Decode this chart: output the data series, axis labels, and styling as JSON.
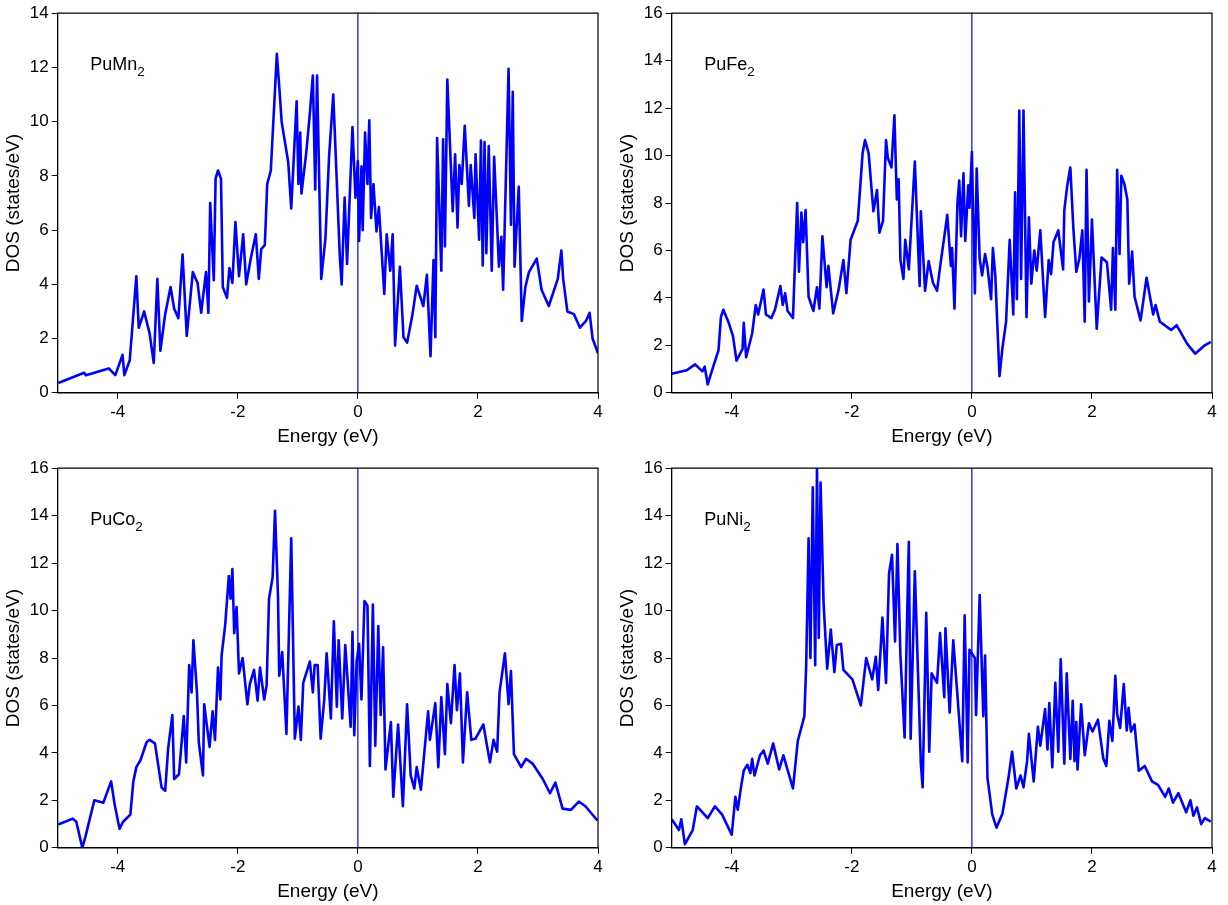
{
  "chart_data": [
    {
      "type": "line",
      "xlabel": "Energy (eV)",
      "ylabel": "DOS (states/eV)",
      "annotations": [
        "PuMn$_{2}$"
      ],
      "xlim": [
        -5,
        4
      ],
      "xticks": [
        -4,
        -2,
        0,
        2,
        4
      ],
      "ylim": [
        0,
        14
      ],
      "yticks": [
        0,
        2,
        4,
        6,
        8,
        10,
        12,
        14
      ],
      "ref_lines": [
        {
          "axis": "x",
          "value": 0,
          "color": "#0000ff"
        }
      ],
      "x": [
        -4.99,
        -4.56,
        -4.53,
        -4.15,
        -4.04,
        -3.92,
        -3.89,
        -3.8,
        -3.69,
        -3.65,
        -3.56,
        -3.47,
        -3.4,
        -3.34,
        -3.29,
        -3.21,
        -3.12,
        -3.06,
        -2.99,
        -2.92,
        -2.85,
        -2.75,
        -2.67,
        -2.61,
        -2.53,
        -2.49,
        -2.46,
        -2.4,
        -2.37,
        -2.33,
        -2.28,
        -2.25,
        -2.18,
        -2.14,
        -2.09,
        -2.04,
        -1.98,
        -1.91,
        -1.86,
        -1.78,
        -1.7,
        -1.65,
        -1.61,
        -1.55,
        -1.51,
        -1.45,
        -1.42,
        -1.39,
        -1.35,
        -1.3,
        -1.27,
        -1.16,
        -1.11,
        -1.02,
        -0.99,
        -0.96,
        -0.94,
        -0.86,
        -0.8,
        -0.75,
        -0.71,
        -0.68,
        -0.61,
        -0.54,
        -0.48,
        -0.41,
        -0.3,
        -0.27,
        -0.22,
        -0.18,
        -0.09,
        -0.04,
        0,
        0.02,
        0.06,
        0.08,
        0.12,
        0.16,
        0.19,
        0.22,
        0.26,
        0.31,
        0.35,
        0.44,
        0.48,
        0.54,
        0.58,
        0.62,
        0.7,
        0.76,
        0.82,
        0.91,
        0.98,
        1.09,
        1.15,
        1.21,
        1.26,
        1.29,
        1.32,
        1.39,
        1.42,
        1.45,
        1.49,
        1.58,
        1.62,
        1.66,
        1.69,
        1.73,
        1.78,
        1.85,
        1.88,
        1.94,
        1.96,
        2.02,
        2.05,
        2.08,
        2.11,
        2.14,
        2.18,
        2.23,
        2.27,
        2.31,
        2.35,
        2.39,
        2.42,
        2.51,
        2.55,
        2.58,
        2.61,
        2.68,
        2.73,
        2.79,
        2.85,
        2.98,
        3.06,
        3.18,
        3.33,
        3.39,
        3.42,
        3.49,
        3.6,
        3.7,
        3.8,
        3.86,
        3.91,
        4.0
      ],
      "series": [
        {
          "color": "#0000ff",
          "values": [
            0.36,
            0.74,
            0.65,
            0.9,
            0.65,
            1.4,
            0.65,
            1.2,
            4.3,
            2.4,
            3.0,
            2.2,
            1.1,
            4.2,
            1.55,
            2.9,
            3.9,
            3.1,
            2.75,
            5.1,
            2.1,
            4.45,
            4.05,
            2.95,
            4.45,
            2.95,
            7.0,
            4.15,
            7.9,
            8.2,
            7.9,
            3.9,
            3.5,
            4.6,
            4.05,
            6.3,
            4.3,
            5.85,
            4.0,
            5.0,
            5.85,
            4.2,
            5.3,
            5.45,
            7.7,
            8.2,
            9.5,
            10.75,
            12.5,
            11.0,
            10.0,
            8.5,
            6.8,
            10.75,
            7.7,
            9.6,
            7.35,
            8.85,
            10.3,
            11.7,
            7.5,
            11.7,
            4.2,
            5.7,
            8.7,
            11.0,
            5.0,
            4.0,
            7.2,
            4.75,
            9.8,
            7.2,
            8.55,
            5.6,
            8.35,
            6.0,
            9.6,
            7.7,
            10.05,
            6.45,
            7.7,
            5.95,
            6.85,
            3.65,
            5.85,
            4.5,
            5.85,
            1.75,
            4.65,
            2.05,
            1.85,
            2.9,
            3.95,
            3.2,
            4.35,
            1.35,
            4.9,
            2.05,
            9.4,
            4.5,
            9.35,
            5.4,
            11.55,
            6.7,
            8.8,
            6.1,
            8.4,
            7.7,
            9.85,
            6.9,
            8.4,
            6.45,
            8.8,
            5.65,
            9.3,
            4.7,
            9.25,
            5.15,
            9.1,
            4.5,
            8.7,
            6.7,
            4.65,
            5.75,
            3.8,
            11.95,
            6.2,
            11.1,
            4.65,
            7.6,
            2.65,
            3.9,
            4.45,
            4.95,
            3.8,
            3.2,
            4.2,
            5.25,
            4.2,
            3.0,
            2.9,
            2.4,
            2.65,
            2.95,
            2.0,
            1.46
          ]
        }
      ]
    },
    {
      "type": "line",
      "xlabel": "Energy (eV)",
      "ylabel": "DOS (states/eV)",
      "annotations": [
        "PuFe$_{2}$"
      ],
      "xlim": [
        -5,
        4
      ],
      "xticks": [
        -4,
        -2,
        0,
        2,
        4
      ],
      "ylim": [
        0,
        16
      ],
      "yticks": [
        0,
        2,
        4,
        6,
        8,
        10,
        12,
        14,
        16
      ],
      "ref_lines": [
        {
          "axis": "x",
          "value": 0,
          "color": "#0000ff"
        }
      ],
      "x": [
        -5,
        -4.75,
        -4.61,
        -4.49,
        -4.45,
        -4.4,
        -4.34,
        -4.22,
        -4.18,
        -4.14,
        -4.05,
        -3.98,
        -3.92,
        -3.82,
        -3.8,
        -3.76,
        -3.66,
        -3.6,
        -3.56,
        -3.47,
        -3.43,
        -3.34,
        -3.28,
        -3.19,
        -3.15,
        -3.11,
        -3.07,
        -2.98,
        -2.91,
        -2.88,
        -2.84,
        -2.81,
        -2.77,
        -2.72,
        -2.64,
        -2.58,
        -2.54,
        -2.49,
        -2.42,
        -2.39,
        -2.31,
        -2.22,
        -2.14,
        -2.09,
        -2.02,
        -1.9,
        -1.82,
        -1.78,
        -1.72,
        -1.64,
        -1.58,
        -1.54,
        -1.48,
        -1.43,
        -1.4,
        -1.34,
        -1.29,
        -1.25,
        -1.22,
        -1.19,
        -1.14,
        -1.11,
        -1.05,
        -0.95,
        -0.87,
        -0.85,
        -0.78,
        -0.72,
        -0.65,
        -0.58,
        -0.53,
        -0.45,
        -0.41,
        -0.35,
        -0.33,
        -0.29,
        -0.24,
        -0.21,
        -0.18,
        -0.14,
        -0.11,
        -0.06,
        -0.04,
        0,
        0.05,
        0.08,
        0.13,
        0.17,
        0.22,
        0.26,
        0.32,
        0.35,
        0.39,
        0.46,
        0.51,
        0.57,
        0.63,
        0.69,
        0.72,
        0.75,
        0.79,
        0.82,
        0.86,
        0.91,
        0.95,
        0.99,
        1.04,
        1.08,
        1.14,
        1.22,
        1.28,
        1.32,
        1.36,
        1.44,
        1.52,
        1.54,
        1.59,
        1.64,
        1.69,
        1.74,
        1.79,
        1.84,
        1.88,
        1.91,
        1.95,
        2.0,
        2.08,
        2.16,
        2.25,
        2.32,
        2.35,
        2.39,
        2.42,
        2.46,
        2.49,
        2.54,
        2.59,
        2.62,
        2.67,
        2.71,
        2.81,
        2.91,
        3.02,
        3.06,
        3.13,
        3.32,
        3.41,
        3.59,
        3.72,
        3.88,
        3.98
      ],
      "series": [
        {
          "color": "#0000ff",
          "values": [
            0.8,
            0.95,
            1.2,
            0.9,
            1.1,
            0.35,
            0.85,
            1.8,
            3.2,
            3.5,
            2.95,
            2.4,
            1.35,
            1.85,
            2.95,
            1.5,
            2.5,
            3.7,
            3.3,
            4.35,
            3.3,
            3.15,
            3.5,
            4.5,
            3.7,
            4.2,
            3.45,
            3.15,
            8.0,
            5.1,
            7.6,
            6.35,
            7.7,
            4.05,
            3.45,
            4.45,
            3.55,
            6.6,
            4.45,
            5.35,
            3.35,
            4.35,
            5.6,
            4.2,
            6.45,
            7.25,
            10.1,
            10.65,
            10.1,
            7.65,
            8.55,
            6.75,
            7.25,
            10.65,
            9.9,
            9.5,
            11.7,
            8.15,
            9.0,
            5.6,
            4.8,
            6.45,
            5.2,
            9.75,
            4.5,
            7.65,
            4.3,
            5.55,
            4.65,
            4.3,
            5.3,
            6.75,
            7.5,
            5.35,
            6.1,
            3.55,
            8.0,
            8.95,
            6.6,
            9.25,
            6.4,
            8.75,
            7.8,
            10.15,
            4.2,
            9.45,
            5.65,
            4.95,
            5.85,
            5.3,
            3.95,
            6.1,
            4.95,
            0.7,
            1.9,
            3.0,
            6.45,
            3.3,
            8.45,
            3.95,
            11.9,
            4.8,
            11.9,
            3.2,
            7.4,
            4.6,
            6.0,
            5.15,
            6.85,
            3.2,
            5.6,
            5.0,
            6.35,
            6.85,
            5.2,
            7.7,
            8.75,
            9.5,
            6.95,
            5.1,
            5.65,
            6.85,
            3.0,
            9.4,
            3.85,
            7.3,
            2.7,
            5.7,
            5.5,
            3.5,
            6.1,
            3.5,
            9.4,
            5.85,
            9.15,
            8.8,
            8.15,
            4.6,
            5.95,
            4.05,
            3.05,
            4.85,
            3.3,
            3.7,
            3.0,
            2.65,
            2.85,
            2.05,
            1.65,
            2.0,
            2.15
          ]
        }
      ]
    },
    {
      "type": "line",
      "xlabel": "Energy (eV)",
      "ylabel": "DOS (states/eV)",
      "annotations": [
        "PuCo$_{2}$"
      ],
      "xlim": [
        -5,
        4
      ],
      "xticks": [
        -4,
        -2,
        0,
        2,
        4
      ],
      "ylim": [
        0,
        16
      ],
      "yticks": [
        0,
        2,
        4,
        6,
        8,
        10,
        12,
        14,
        16
      ],
      "ref_lines": [
        {
          "axis": "x",
          "value": 0,
          "color": "#0000ff"
        }
      ],
      "x": [
        -4.99,
        -4.75,
        -4.69,
        -4.59,
        -4.54,
        -4.39,
        -4.24,
        -4.11,
        -4.05,
        -3.97,
        -3.91,
        -3.79,
        -3.74,
        -3.69,
        -3.62,
        -3.52,
        -3.47,
        -3.38,
        -3.27,
        -3.21,
        -3.16,
        -3.09,
        -3.06,
        -2.98,
        -2.9,
        -2.86,
        -2.81,
        -2.77,
        -2.74,
        -2.68,
        -2.65,
        -2.58,
        -2.56,
        -2.47,
        -2.42,
        -2.38,
        -2.33,
        -2.29,
        -2.27,
        -2.21,
        -2.15,
        -2.12,
        -2.09,
        -2.06,
        -2.02,
        -1.98,
        -1.92,
        -1.84,
        -1.8,
        -1.73,
        -1.67,
        -1.63,
        -1.56,
        -1.52,
        -1.48,
        -1.42,
        -1.38,
        -1.33,
        -1.31,
        -1.26,
        -1.19,
        -1.11,
        -1.05,
        -0.99,
        -0.95,
        -0.91,
        -0.8,
        -0.75,
        -0.72,
        -0.67,
        -0.62,
        -0.56,
        -0.52,
        -0.45,
        -0.4,
        -0.35,
        -0.32,
        -0.26,
        -0.21,
        -0.12,
        -0.09,
        -0.06,
        -0.02,
        0.02,
        0.06,
        0.11,
        0.16,
        0.2,
        0.25,
        0.29,
        0.34,
        0.38,
        0.42,
        0.46,
        0.55,
        0.59,
        0.67,
        0.75,
        0.82,
        0.88,
        0.94,
        0.98,
        1.05,
        1.17,
        1.2,
        1.29,
        1.34,
        1.39,
        1.45,
        1.49,
        1.55,
        1.61,
        1.65,
        1.7,
        1.75,
        1.82,
        1.89,
        1.96,
        2.09,
        2.2,
        2.26,
        2.32,
        2.36,
        2.45,
        2.51,
        2.55,
        2.6,
        2.72,
        2.8,
        2.91,
        3.08,
        3.2,
        3.29,
        3.41,
        3.55,
        3.68,
        3.79,
        3.99
      ],
      "series": [
        {
          "color": "#0000ff",
          "values": [
            0.98,
            1.23,
            1.1,
            0.0,
            0.45,
            2.0,
            1.9,
            2.8,
            1.8,
            0.8,
            1.1,
            1.4,
            2.8,
            3.4,
            3.7,
            4.45,
            4.55,
            4.4,
            2.55,
            2.4,
            4.2,
            5.6,
            2.9,
            3.1,
            5.55,
            3.6,
            7.7,
            6.55,
            8.75,
            6.55,
            4.45,
            3.05,
            6.05,
            4.25,
            5.75,
            4.55,
            7.6,
            6.25,
            8.1,
            9.4,
            11.45,
            10.5,
            11.75,
            9.05,
            10.15,
            7.35,
            8.0,
            6.05,
            6.9,
            7.5,
            6.2,
            7.6,
            6.25,
            6.85,
            10.5,
            11.4,
            14.2,
            10.55,
            7.25,
            8.25,
            4.8,
            13.05,
            4.6,
            5.95,
            4.55,
            6.95,
            7.85,
            6.55,
            7.7,
            7.7,
            4.6,
            6.25,
            8.2,
            5.45,
            9.55,
            5.95,
            8.75,
            5.45,
            8.55,
            5.1,
            9.1,
            4.75,
            7.85,
            8.6,
            6.25,
            10.4,
            10.2,
            3.45,
            10.25,
            4.3,
            9.35,
            5.6,
            8.45,
            3.3,
            5.3,
            2.15,
            5.2,
            1.75,
            6.05,
            3.05,
            2.5,
            3.4,
            2.45,
            5.75,
            4.55,
            6.1,
            3.4,
            6.35,
            3.95,
            6.9,
            5.25,
            7.7,
            5.8,
            7.35,
            3.6,
            6.55,
            4.55,
            4.6,
            5.2,
            3.6,
            4.55,
            4.05,
            6.55,
            8.2,
            6.05,
            7.45,
            3.95,
            3.4,
            3.75,
            3.55,
            2.9,
            2.3,
            2.75,
            1.65,
            1.6,
            1.95,
            1.75,
            1.15
          ]
        }
      ]
    },
    {
      "type": "line",
      "xlabel": "Energy (eV)",
      "ylabel": "DOS (states/eV)",
      "annotations": [
        "PuNi$_{2}$"
      ],
      "xlim": [
        -5,
        4
      ],
      "xticks": [
        -4,
        -2,
        0,
        2,
        4
      ],
      "ylim": [
        0,
        16
      ],
      "yticks": [
        0,
        2,
        4,
        6,
        8,
        10,
        12,
        14,
        16
      ],
      "ref_lines": [
        {
          "axis": "x",
          "value": 0,
          "color": "#0000ff"
        }
      ],
      "x": [
        -5,
        -4.88,
        -4.84,
        -4.78,
        -4.65,
        -4.58,
        -4.4,
        -4.28,
        -4.16,
        -4.0,
        -3.94,
        -3.9,
        -3.84,
        -3.8,
        -3.74,
        -3.69,
        -3.66,
        -3.62,
        -3.53,
        -3.47,
        -3.4,
        -3.31,
        -3.21,
        -3.14,
        -2.98,
        -2.9,
        -2.79,
        -2.76,
        -2.72,
        -2.69,
        -2.65,
        -2.61,
        -2.58,
        -2.55,
        -2.52,
        -2.47,
        -2.41,
        -2.35,
        -2.29,
        -2.25,
        -2.18,
        -2.14,
        -1.99,
        -1.85,
        -1.76,
        -1.66,
        -1.6,
        -1.56,
        -1.49,
        -1.43,
        -1.38,
        -1.33,
        -1.28,
        -1.24,
        -1.19,
        -1.12,
        -1.08,
        -1.05,
        -1.02,
        -0.95,
        -0.85,
        -0.82,
        -0.76,
        -0.71,
        -0.67,
        -0.58,
        -0.53,
        -0.46,
        -0.44,
        -0.37,
        -0.31,
        -0.25,
        -0.16,
        -0.12,
        -0.07,
        -0.04,
        0.05,
        0.07,
        0.13,
        0.19,
        0.22,
        0.26,
        0.34,
        0.41,
        0.51,
        0.61,
        0.67,
        0.74,
        0.81,
        0.86,
        0.92,
        0.95,
        1.03,
        1.1,
        1.14,
        1.22,
        1.26,
        1.29,
        1.34,
        1.39,
        1.44,
        1.48,
        1.54,
        1.58,
        1.64,
        1.68,
        1.71,
        1.74,
        1.76,
        1.82,
        1.88,
        1.95,
        2.01,
        2.1,
        2.19,
        2.24,
        2.29,
        2.34,
        2.39,
        2.42,
        2.47,
        2.53,
        2.58,
        2.61,
        2.65,
        2.71,
        2.78,
        2.88,
        3.0,
        3.1,
        3.22,
        3.28,
        3.35,
        3.44,
        3.57,
        3.64,
        3.69,
        3.75,
        3.82,
        3.88,
        3.98
      ],
      "series": [
        {
          "color": "#0000ff",
          "values": [
            1.2,
            0.75,
            1.2,
            0.15,
            0.75,
            1.75,
            1.25,
            1.75,
            1.4,
            0.55,
            2.15,
            1.6,
            2.65,
            3.25,
            3.5,
            3.15,
            3.75,
            3.05,
            3.9,
            4.1,
            3.55,
            4.4,
            3.3,
            3.9,
            2.5,
            4.5,
            5.55,
            7.7,
            13.05,
            8.0,
            15.2,
            7.7,
            16.0,
            8.85,
            15.4,
            10.3,
            7.55,
            9.2,
            7.4,
            8.55,
            8.6,
            7.5,
            7.1,
            6.0,
            8.0,
            7.1,
            8.05,
            6.65,
            9.7,
            6.95,
            11.55,
            12.35,
            8.7,
            12.8,
            8.1,
            4.65,
            9.55,
            12.9,
            4.6,
            11.65,
            3.55,
            2.55,
            9.9,
            4.05,
            7.35,
            6.95,
            9.05,
            6.35,
            9.25,
            5.7,
            8.75,
            6.75,
            3.65,
            9.8,
            3.6,
            8.35,
            8.0,
            5.6,
            10.65,
            5.55,
            8.1,
            2.95,
            1.4,
            0.85,
            1.45,
            2.95,
            4.05,
            2.5,
            3.05,
            2.55,
            3.65,
            4.8,
            2.8,
            5.1,
            4.3,
            5.85,
            4.15,
            6.1,
            3.4,
            6.95,
            4.05,
            7.95,
            3.55,
            7.35,
            3.75,
            6.2,
            3.65,
            5.3,
            3.3,
            6.05,
            3.9,
            5.25,
            4.9,
            5.4,
            3.75,
            3.45,
            5.35,
            4.5,
            7.25,
            5.65,
            5.05,
            6.9,
            4.95,
            5.9,
            4.9,
            5.2,
            3.25,
            3.45,
            2.8,
            2.65,
            2.15,
            2.5,
            1.9,
            2.3,
            1.5,
            2.0,
            1.35,
            1.7,
            1.0,
            1.25,
            1.1
          ]
        }
      ]
    }
  ]
}
